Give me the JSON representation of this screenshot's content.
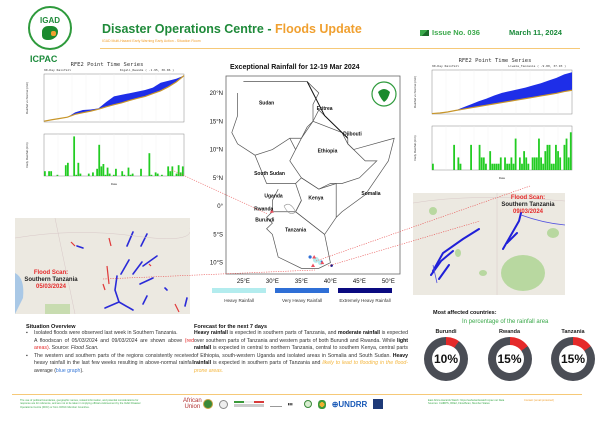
{
  "header": {
    "logo_text": "IGAD",
    "org": "ICPAC",
    "title_main": "Disaster Operations Centre - ",
    "title_highlight": "Floods Update",
    "subtitle": "IGAD Multi-Hazard Early Warning Early Action - Situation Room",
    "issue": "Issue No. 036",
    "date": "March 11, 2024"
  },
  "colors": {
    "brand_green": "#1f8a3a",
    "accent_orange": "#f0a030",
    "heavy": "#b3ecee",
    "very_heavy": "#2f6fd6",
    "extreme": "#0a0a80",
    "flood_red": "#e52a2a",
    "donut_gray": "#4a4d55"
  },
  "left_chart": {
    "title": "RFE2 Point Time Series",
    "panel_label": "90-Day Rainfall",
    "location": "Kigali_Rwanda ( -1.95, 30.06 )",
    "xlabel": "Date",
    "ylabel_top": "Rainfall vs Normal (mm)",
    "ylabel_bottom": "Daily Rainfall (mm)"
  },
  "right_chart": {
    "title": "RFE2 Point Time Series",
    "panel_label": "90-Day Rainfall",
    "location": "Liwale_Tanzania ( -9.80, 37.93 )",
    "xlabel": "Date",
    "ylabel_top": "Rainfall vs Normal (mm)",
    "ylabel_bottom": "Daily Rainfall (mm)"
  },
  "chart_data": [
    {
      "type": "area",
      "title": "RFE2 Point Time Series - Kigali_Rwanda (-1.95, 30.06)",
      "subtitle": "90-Day Rainfall",
      "ylabel": "Rainfall vs Normal (mm)",
      "series": [
        {
          "name": "Cumulative rainfall",
          "values": [
            5,
            14,
            22,
            30,
            60,
            75,
            78,
            85,
            125,
            160,
            170,
            180,
            190,
            200,
            215,
            245,
            258,
            270,
            290
          ]
        },
        {
          "name": "Normal",
          "values": [
            5,
            14,
            22,
            30,
            48,
            58,
            68,
            80,
            95,
            108,
            120,
            135,
            148,
            160,
            178,
            195,
            220,
            250,
            290
          ]
        }
      ],
      "ylim": [
        0,
        300
      ]
    },
    {
      "type": "bar",
      "title": "Daily Rainfall - Kigali_Rwanda",
      "ylabel": "Daily Rainfall (mm)",
      "xlabel": "Date",
      "values": [
        4,
        0,
        4,
        4,
        0,
        0,
        1,
        0,
        0,
        0,
        9,
        11,
        0,
        0,
        33,
        1,
        11,
        2,
        0,
        0,
        0,
        2,
        0,
        3,
        0,
        6,
        26,
        8,
        10,
        1,
        7,
        2,
        0,
        1,
        6,
        0,
        0,
        4,
        1,
        0,
        7,
        1,
        2,
        0,
        0,
        0,
        6,
        0,
        0,
        0,
        19,
        1,
        0,
        3,
        2,
        0,
        1,
        0,
        0,
        8,
        4,
        8,
        0,
        2,
        9,
        3,
        8
      ],
      "ylim": [
        0,
        35
      ]
    },
    {
      "type": "area",
      "title": "RFE2 Point Time Series - Liwale_Tanzania (-9.80, 37.93)",
      "subtitle": "90-Day Rainfall",
      "ylabel": "Rainfall vs Normal (mm)",
      "series": [
        {
          "name": "Cumulative rainfall",
          "values": [
            10,
            20,
            40,
            80,
            150,
            220,
            290,
            350,
            420,
            480,
            520,
            560,
            600,
            650,
            700,
            760,
            820,
            900,
            950
          ]
        },
        {
          "name": "Normal",
          "values": [
            10,
            22,
            45,
            80,
            110,
            140,
            170,
            200,
            230,
            260,
            290,
            320,
            350,
            380,
            410,
            440,
            470,
            510,
            540
          ]
        }
      ],
      "ylim": [
        0,
        1000
      ]
    },
    {
      "type": "bar",
      "title": "Daily Rainfall - Liwale_Tanzania",
      "ylabel": "Daily Rainfall (mm)",
      "xlabel": "Date",
      "values": [
        1,
        0,
        0,
        0,
        0,
        0,
        0,
        0,
        0,
        0,
        4,
        0,
        2,
        1,
        0,
        0,
        0,
        0,
        4,
        0,
        0,
        0,
        4,
        2,
        2,
        1,
        0,
        3,
        1,
        1,
        1,
        1,
        2,
        0,
        2,
        1,
        1,
        2,
        1,
        5,
        0,
        2,
        1,
        3,
        2,
        1,
        0,
        2,
        2,
        2,
        5,
        2,
        1,
        3,
        4,
        4,
        1,
        1,
        4,
        3,
        2,
        0,
        4,
        5,
        2,
        6
      ],
      "ylim": [
        0,
        7
      ]
    }
  ],
  "map": {
    "title": "Exceptional Rainfall for 12-19 Mar 2024",
    "lat_labels": [
      "20°N",
      "15°N",
      "10°N",
      "5°N",
      "0°",
      "5°S",
      "10°S"
    ],
    "lon_labels": [
      "25°E",
      "30°E",
      "35°E",
      "40°E",
      "45°E",
      "50°E"
    ],
    "countries": [
      "Sudan",
      "Eritrea",
      "Djibouti",
      "Ethiopia",
      "South Sudan",
      "Somalia",
      "Uganda",
      "Kenya",
      "Rwanda",
      "Burundi",
      "Tanzania"
    ],
    "legend": [
      "Heavy Rainfall",
      "Very Heavy Rainfall",
      "Extremely Heavy Rainfall"
    ]
  },
  "flood_scan_left": {
    "label1": "Flood Scan:",
    "label2": "Southern Tanzania",
    "label3": "05/03/2024"
  },
  "flood_scan_right": {
    "label1": "Flood Scan:",
    "label2": "Southern Tanzania",
    "label3": "09/03/2024"
  },
  "situation": {
    "heading": "Situation Overview",
    "p1": "Isolated floods were observed last week in Southern Tanzania.",
    "p2a": "A floodscan of 05/03/2024 and 09/03/2024 are shown above",
    "p2red": "(red areas)",
    "p2b": ". Source: ",
    "p2src": "Flood Scan.",
    "p3a": "The western and southern parts of the regions consistently received heavy rainfall in the last few weeks resulting in above-normal rainfall average (",
    "p3blue": "blue graph",
    "p3b": ")."
  },
  "forecast": {
    "heading": "Forecast for the next 7 days",
    "t1": "Heavy rainfall",
    "t2": " is expected in southern parts of Tanzania, and ",
    "t3": "moderate rainfall",
    "t4": " is expected over southern parts of Tanzania and western parts of both Burundi and Rwanda. While ",
    "t5": "light rainfall",
    "t6": " is expected in central to northern Tanzania, central to southern Kenya, central parts of Ethiopia, south-western Uganda and isolated areas in Somalia and South Sudan. ",
    "t7": "Heavy rainfall",
    "t8": " is expected in southern parts of Tanzania and ",
    "t9": "likely to lead to flooding in the flood-prone areas."
  },
  "affected": {
    "heading": "Most affected countries:",
    "subheading": "In percentage of the rainfall area",
    "countries": [
      {
        "name": "Burundi",
        "pct": 10,
        "label": "10%"
      },
      {
        "name": "Rwanda",
        "pct": 15,
        "label": "15%"
      },
      {
        "name": "Tanzania",
        "pct": 15,
        "label": "15%"
      }
    ]
  },
  "footer": {
    "disclaimer": "The use of political boundaries, geographic names, related information, and potential considerations for response are for reference, and are not to be taken in implying official endorsement by the IGAD Disaster Operations Centre (DOC) or from ICPAC Member Countries.",
    "partners": [
      "African Union",
      "IGAD",
      "Italian Agency for Development Cooperation",
      "ICPAC",
      "UNDRR",
      "DRMKC"
    ],
    "sources": "East Africa Hazards Watch: https://eahazardswatch.icpac.net  Data Sources: CHIRPS, RFE2, FloodScan, Member States",
    "contact": "Contact: [email protected]"
  }
}
